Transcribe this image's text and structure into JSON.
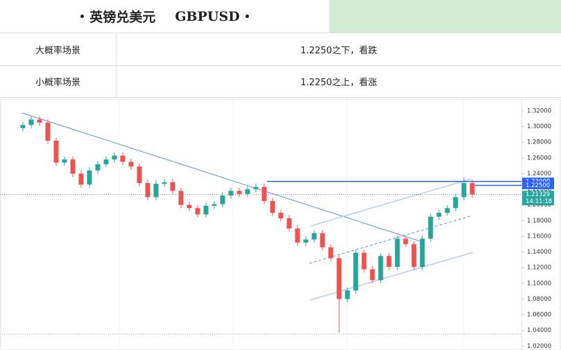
{
  "header": {
    "title": "英镑兑美元",
    "symbol": "GBPUSD"
  },
  "table": {
    "rows": [
      [
        "大概率场景",
        "1.2250之下，看跌"
      ],
      [
        "小概率场景",
        "1.2250之上，看涨"
      ]
    ]
  },
  "chart_data": {
    "type": "candlestick",
    "up_color": "#26a69a",
    "down_color": "#ef5350",
    "ylim": [
      1.015,
      1.335
    ],
    "yticks": [
      {
        "value": 1.02,
        "label": "1.02000"
      },
      {
        "value": 1.04,
        "label": "1.04000"
      },
      {
        "value": 1.06,
        "label": "1.06000"
      },
      {
        "value": 1.08,
        "label": "1.08000"
      },
      {
        "value": 1.1,
        "label": "1.10000"
      },
      {
        "value": 1.12,
        "label": "1.12000"
      },
      {
        "value": 1.14,
        "label": "1.14000"
      },
      {
        "value": 1.16,
        "label": "1.16000"
      },
      {
        "value": 1.18,
        "label": "1.18000"
      },
      {
        "value": 1.2,
        "label": "1.20000"
      },
      {
        "value": 1.22,
        "label": "1.22000"
      },
      {
        "value": 1.24,
        "label": "1.24000"
      },
      {
        "value": 1.26,
        "label": "1.26000"
      },
      {
        "value": 1.28,
        "label": "1.28000"
      },
      {
        "value": 1.3,
        "label": "1.30000"
      },
      {
        "value": 1.32,
        "label": "1.32000"
      }
    ],
    "open": [
      1.298,
      1.302,
      1.309,
      1.305,
      1.282,
      1.254,
      1.258,
      1.24,
      1.226,
      1.244,
      1.252,
      1.258,
      1.263,
      1.255,
      1.249,
      1.228,
      1.21,
      1.227,
      1.229,
      1.218,
      1.2,
      1.196,
      1.188,
      1.199,
      1.201,
      1.212,
      1.218,
      1.214,
      1.22,
      1.223,
      1.205,
      1.19,
      1.183,
      1.17,
      1.152,
      1.156,
      1.164,
      1.146,
      1.132,
      1.08,
      1.091,
      1.139,
      1.118,
      1.104,
      1.135,
      1.121,
      1.157,
      1.15,
      1.121,
      1.157,
      1.185,
      1.19,
      1.196,
      1.21,
      1.228
    ],
    "high": [
      1.306,
      1.313,
      1.313,
      1.309,
      1.286,
      1.262,
      1.262,
      1.244,
      1.248,
      1.256,
      1.262,
      1.267,
      1.267,
      1.259,
      1.253,
      1.232,
      1.231,
      1.233,
      1.233,
      1.222,
      1.204,
      1.2,
      1.203,
      1.205,
      1.216,
      1.222,
      1.222,
      1.224,
      1.227,
      1.227,
      1.209,
      1.194,
      1.187,
      1.174,
      1.16,
      1.168,
      1.168,
      1.15,
      1.136,
      1.095,
      1.143,
      1.143,
      1.122,
      1.139,
      1.139,
      1.161,
      1.161,
      1.154,
      1.161,
      1.189,
      1.194,
      1.2,
      1.214,
      1.235,
      1.232
    ],
    "low": [
      1.294,
      1.298,
      1.301,
      1.278,
      1.25,
      1.25,
      1.236,
      1.222,
      1.222,
      1.24,
      1.248,
      1.254,
      1.251,
      1.245,
      1.224,
      1.206,
      1.206,
      1.223,
      1.214,
      1.196,
      1.192,
      1.184,
      1.184,
      1.195,
      1.197,
      1.208,
      1.21,
      1.21,
      1.216,
      1.201,
      1.186,
      1.179,
      1.166,
      1.148,
      1.148,
      1.152,
      1.142,
      1.128,
      1.037,
      1.076,
      1.087,
      1.114,
      1.1,
      1.1,
      1.117,
      1.117,
      1.146,
      1.117,
      1.117,
      1.153,
      1.181,
      1.186,
      1.192,
      1.206,
      1.209
    ],
    "close": [
      1.302,
      1.309,
      1.305,
      1.282,
      1.254,
      1.258,
      1.24,
      1.226,
      1.244,
      1.252,
      1.258,
      1.263,
      1.255,
      1.249,
      1.228,
      1.21,
      1.227,
      1.229,
      1.218,
      1.2,
      1.196,
      1.188,
      1.199,
      1.201,
      1.212,
      1.218,
      1.214,
      1.22,
      1.223,
      1.205,
      1.19,
      1.183,
      1.17,
      1.152,
      1.156,
      1.164,
      1.146,
      1.132,
      1.08,
      1.091,
      1.139,
      1.118,
      1.104,
      1.135,
      1.121,
      1.157,
      1.15,
      1.121,
      1.157,
      1.185,
      1.19,
      1.196,
      1.21,
      1.228,
      1.21329
    ],
    "price_labels": [
      {
        "value": 1.23,
        "label": "1.23000",
        "color": "#2962ff"
      },
      {
        "value": 1.225,
        "label": "1.22500",
        "color": "#2962ff"
      }
    ],
    "last_price": {
      "value": 1.21329,
      "label": "1.21329",
      "time": "14:11:18",
      "color": "#26a69a"
    }
  }
}
